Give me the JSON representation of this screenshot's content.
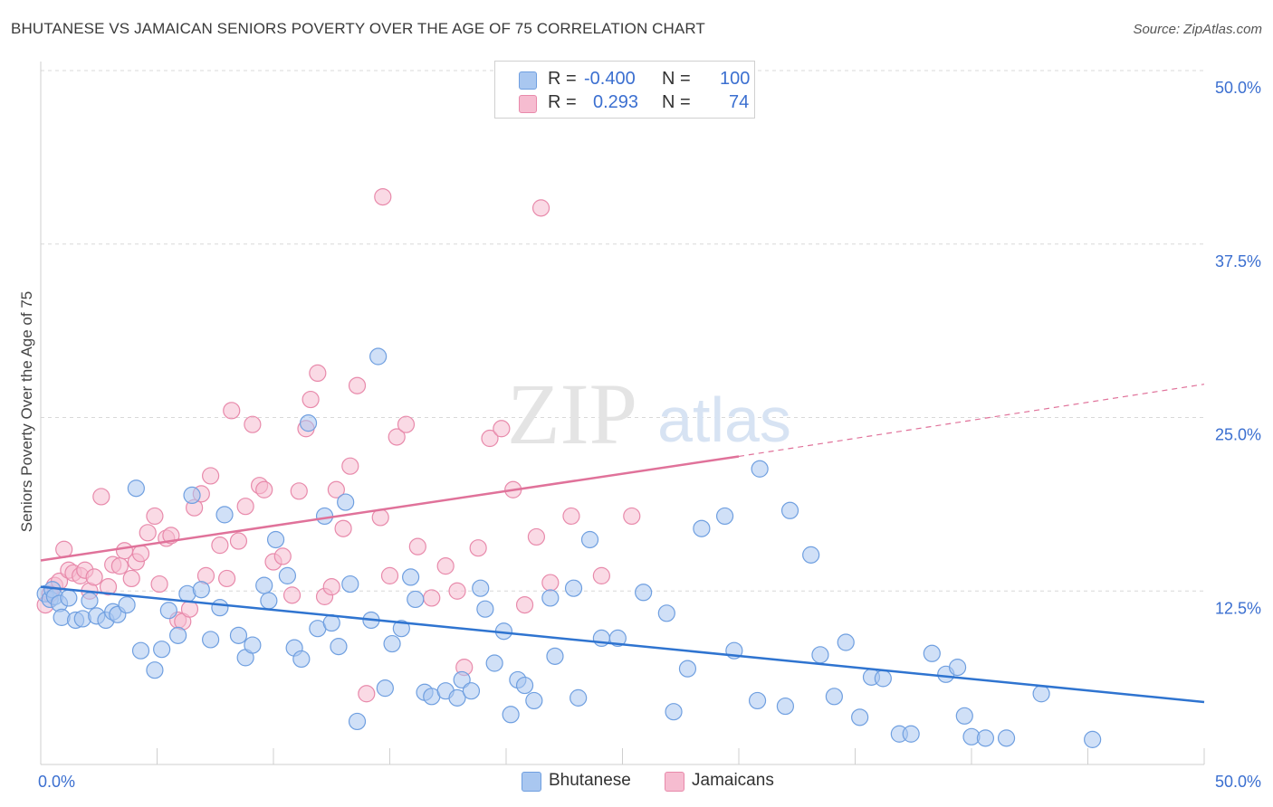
{
  "title": "BHUTANESE VS JAMAICAN SENIORS POVERTY OVER THE AGE OF 75 CORRELATION CHART",
  "source": "Source: ZipAtlas.com",
  "watermark": {
    "zip": "ZIP",
    "atlas": "atlas"
  },
  "legend_top": {
    "rows": [
      {
        "r_label": "R =",
        "r_value": "-0.400",
        "n_label": "N =",
        "n_value": "100"
      },
      {
        "r_label": "R =",
        "r_value": "0.293",
        "n_label": "N =",
        "n_value": "74"
      }
    ]
  },
  "colors": {
    "blue_fill": "#a9c7f0",
    "blue_stroke": "#6f9fe0",
    "blue_line": "#2f74d0",
    "pink_fill": "#f6bcd0",
    "pink_stroke": "#e88aab",
    "pink_line": "#e0729a",
    "grid": "#d8d8d8",
    "axis_text": "#3b6fd0"
  },
  "chart_data": {
    "type": "scatter",
    "title": "BHUTANESE VS JAMAICAN SENIORS POVERTY OVER THE AGE OF 75 CORRELATION CHART",
    "xlabel": "",
    "ylabel": "Seniors Poverty Over the Age of 75",
    "xlim": [
      0,
      50
    ],
    "ylim": [
      0,
      50
    ],
    "x_tick_labels": [
      "0.0%",
      "50.0%"
    ],
    "y_ticks": [
      12.5,
      25,
      37.5,
      50
    ],
    "y_tick_labels": [
      "12.5%",
      "25.0%",
      "37.5%",
      "50.0%"
    ],
    "grid": true,
    "legend_position": "bottom-center",
    "series": [
      {
        "name": "Bhutanese",
        "r": -0.4,
        "n": 100,
        "trend": {
          "x0": 0,
          "y0": 12.8,
          "x1": 50,
          "y1": 4.5
        },
        "points": [
          [
            0.2,
            12.3
          ],
          [
            0.4,
            11.9
          ],
          [
            0.5,
            12.6
          ],
          [
            0.6,
            12.1
          ],
          [
            0.8,
            11.6
          ],
          [
            0.9,
            10.6
          ],
          [
            1.2,
            12.0
          ],
          [
            1.5,
            10.4
          ],
          [
            1.8,
            10.5
          ],
          [
            2.1,
            11.8
          ],
          [
            2.4,
            10.7
          ],
          [
            2.8,
            10.4
          ],
          [
            3.1,
            11.0
          ],
          [
            3.3,
            10.8
          ],
          [
            3.7,
            11.5
          ],
          [
            4.1,
            19.9
          ],
          [
            4.3,
            8.2
          ],
          [
            4.9,
            6.8
          ],
          [
            5.2,
            8.3
          ],
          [
            5.5,
            11.1
          ],
          [
            5.9,
            9.3
          ],
          [
            6.3,
            12.3
          ],
          [
            6.5,
            19.4
          ],
          [
            6.9,
            12.6
          ],
          [
            7.3,
            9.0
          ],
          [
            7.7,
            11.3
          ],
          [
            7.9,
            18.0
          ],
          [
            8.5,
            9.3
          ],
          [
            8.8,
            7.7
          ],
          [
            9.1,
            8.6
          ],
          [
            9.6,
            12.9
          ],
          [
            9.8,
            11.8
          ],
          [
            10.1,
            16.2
          ],
          [
            10.6,
            13.6
          ],
          [
            10.9,
            8.4
          ],
          [
            11.2,
            7.6
          ],
          [
            11.5,
            24.6
          ],
          [
            11.9,
            9.8
          ],
          [
            12.2,
            17.9
          ],
          [
            12.5,
            10.2
          ],
          [
            12.8,
            8.5
          ],
          [
            13.1,
            18.9
          ],
          [
            13.3,
            13.0
          ],
          [
            13.6,
            3.1
          ],
          [
            14.2,
            10.4
          ],
          [
            14.5,
            29.4
          ],
          [
            14.8,
            5.5
          ],
          [
            15.1,
            8.7
          ],
          [
            15.5,
            9.8
          ],
          [
            15.9,
            13.5
          ],
          [
            16.1,
            11.9
          ],
          [
            16.5,
            5.2
          ],
          [
            16.8,
            4.9
          ],
          [
            17.4,
            5.3
          ],
          [
            17.9,
            4.8
          ],
          [
            18.1,
            6.1
          ],
          [
            18.5,
            5.3
          ],
          [
            18.9,
            12.7
          ],
          [
            19.1,
            11.2
          ],
          [
            19.5,
            7.3
          ],
          [
            19.9,
            9.6
          ],
          [
            20.2,
            3.6
          ],
          [
            20.5,
            6.1
          ],
          [
            20.8,
            5.7
          ],
          [
            21.2,
            4.6
          ],
          [
            21.9,
            12.0
          ],
          [
            22.1,
            7.8
          ],
          [
            22.9,
            12.7
          ],
          [
            23.1,
            4.8
          ],
          [
            23.6,
            16.2
          ],
          [
            24.1,
            9.1
          ],
          [
            24.8,
            9.1
          ],
          [
            25.9,
            12.4
          ],
          [
            26.9,
            10.9
          ],
          [
            27.2,
            3.8
          ],
          [
            27.8,
            6.9
          ],
          [
            28.4,
            17.0
          ],
          [
            29.4,
            17.9
          ],
          [
            29.8,
            8.2
          ],
          [
            30.9,
            21.3
          ],
          [
            30.8,
            4.6
          ],
          [
            32.0,
            4.2
          ],
          [
            32.2,
            18.3
          ],
          [
            33.1,
            15.1
          ],
          [
            33.5,
            7.9
          ],
          [
            34.1,
            4.9
          ],
          [
            34.6,
            8.8
          ],
          [
            35.2,
            3.4
          ],
          [
            35.7,
            6.3
          ],
          [
            36.2,
            6.2
          ],
          [
            36.9,
            2.2
          ],
          [
            37.4,
            2.2
          ],
          [
            38.3,
            8.0
          ],
          [
            38.9,
            6.5
          ],
          [
            39.4,
            7.0
          ],
          [
            39.7,
            3.5
          ],
          [
            40.0,
            2.0
          ],
          [
            40.6,
            1.9
          ],
          [
            41.5,
            1.9
          ],
          [
            43.0,
            5.1
          ],
          [
            45.2,
            1.8
          ]
        ]
      },
      {
        "name": "Jamaicans",
        "r": 0.293,
        "n": 74,
        "trend": {
          "x0": 0,
          "y0": 14.7,
          "x1": 30,
          "y1": 22.2,
          "dashed_to_x": 50,
          "dashed_to_y": 27.4
        },
        "points": [
          [
            0.2,
            11.5
          ],
          [
            0.4,
            12.3
          ],
          [
            0.6,
            12.9
          ],
          [
            0.8,
            13.2
          ],
          [
            1.0,
            15.5
          ],
          [
            1.2,
            14.0
          ],
          [
            1.4,
            13.8
          ],
          [
            1.7,
            13.6
          ],
          [
            1.9,
            14.0
          ],
          [
            2.1,
            12.5
          ],
          [
            2.3,
            13.5
          ],
          [
            2.6,
            19.3
          ],
          [
            2.9,
            12.8
          ],
          [
            3.1,
            14.4
          ],
          [
            3.4,
            14.3
          ],
          [
            3.6,
            15.4
          ],
          [
            3.9,
            13.4
          ],
          [
            4.1,
            14.6
          ],
          [
            4.3,
            15.2
          ],
          [
            4.6,
            16.7
          ],
          [
            4.9,
            17.9
          ],
          [
            5.1,
            13.0
          ],
          [
            5.4,
            16.3
          ],
          [
            5.6,
            16.5
          ],
          [
            5.9,
            10.4
          ],
          [
            6.1,
            10.3
          ],
          [
            6.4,
            11.2
          ],
          [
            6.6,
            18.5
          ],
          [
            6.9,
            19.5
          ],
          [
            7.1,
            13.6
          ],
          [
            7.3,
            20.8
          ],
          [
            7.7,
            15.8
          ],
          [
            8.0,
            13.4
          ],
          [
            8.2,
            25.5
          ],
          [
            8.5,
            16.1
          ],
          [
            8.8,
            18.6
          ],
          [
            9.1,
            24.5
          ],
          [
            9.4,
            20.1
          ],
          [
            9.6,
            19.8
          ],
          [
            10.0,
            14.6
          ],
          [
            10.4,
            15.0
          ],
          [
            10.8,
            12.2
          ],
          [
            11.1,
            19.7
          ],
          [
            11.4,
            24.2
          ],
          [
            11.6,
            26.3
          ],
          [
            11.9,
            28.2
          ],
          [
            12.2,
            12.1
          ],
          [
            12.5,
            12.8
          ],
          [
            12.7,
            19.8
          ],
          [
            13.0,
            17.0
          ],
          [
            13.3,
            21.5
          ],
          [
            13.6,
            27.3
          ],
          [
            14.0,
            5.1
          ],
          [
            14.6,
            17.8
          ],
          [
            15.0,
            13.6
          ],
          [
            15.3,
            23.6
          ],
          [
            15.7,
            24.5
          ],
          [
            16.2,
            15.7
          ],
          [
            16.8,
            12.0
          ],
          [
            17.4,
            14.3
          ],
          [
            17.9,
            12.5
          ],
          [
            18.2,
            7.0
          ],
          [
            18.8,
            15.6
          ],
          [
            19.3,
            23.5
          ],
          [
            19.8,
            24.2
          ],
          [
            20.3,
            19.8
          ],
          [
            20.8,
            11.5
          ],
          [
            21.3,
            16.4
          ],
          [
            21.9,
            13.1
          ],
          [
            22.8,
            17.9
          ],
          [
            24.1,
            13.6
          ],
          [
            25.4,
            17.9
          ],
          [
            14.7,
            40.9
          ],
          [
            21.5,
            40.1
          ]
        ]
      }
    ]
  },
  "legend_bottom": [
    {
      "label": "Bhutanese"
    },
    {
      "label": "Jamaicans"
    }
  ]
}
